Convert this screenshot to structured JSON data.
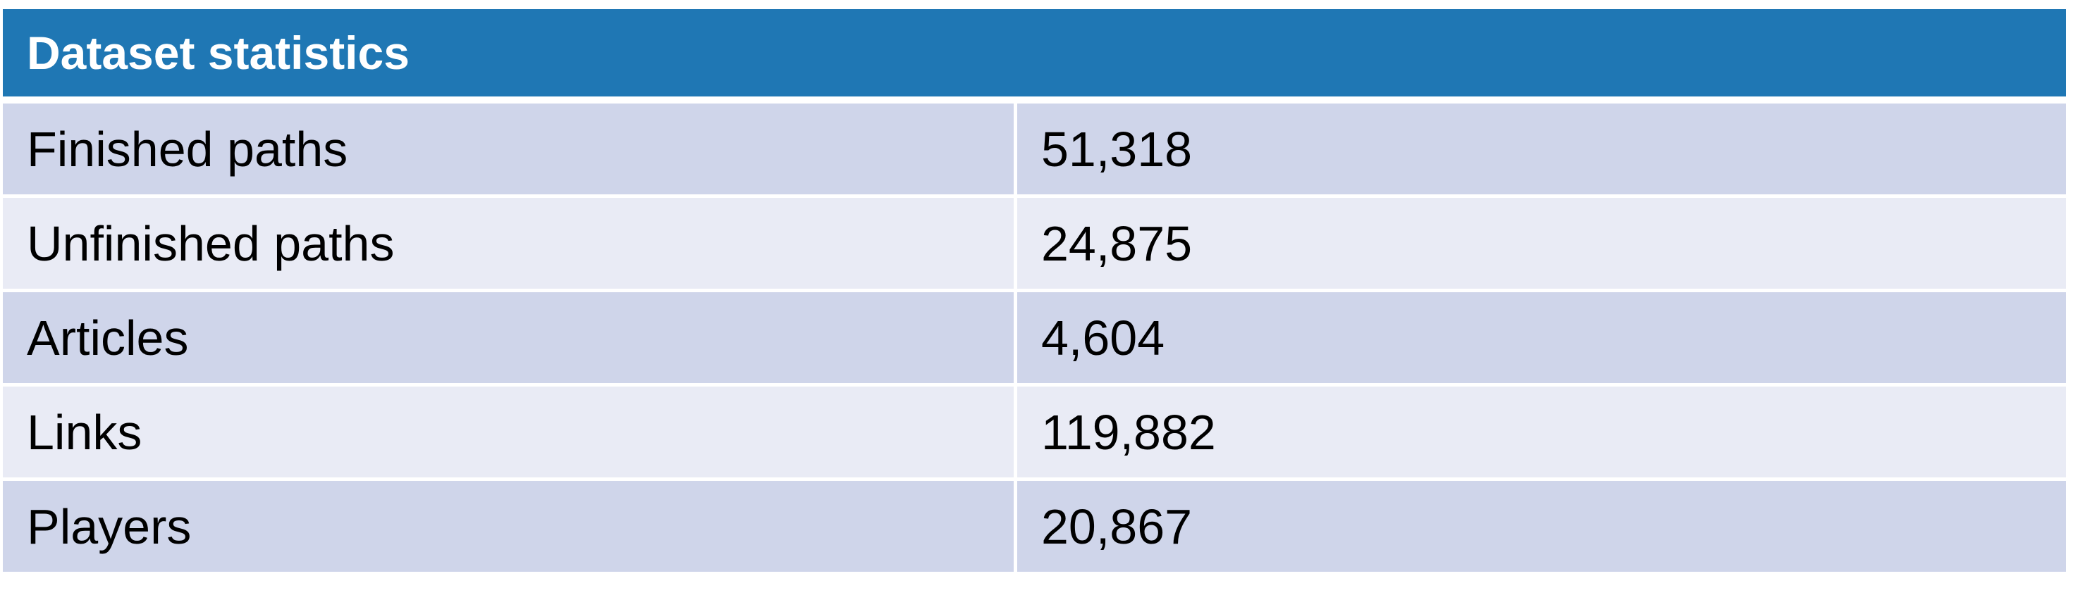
{
  "table": {
    "header": "Dataset statistics",
    "rows": [
      {
        "label": "Finished paths",
        "value": "51,318"
      },
      {
        "label": "Unfinished paths",
        "value": "24,875"
      },
      {
        "label": "Articles",
        "value": "4,604"
      },
      {
        "label": "Links",
        "value": "119,882"
      },
      {
        "label": "Players",
        "value": "20,867"
      }
    ]
  },
  "colors": {
    "header_bg": "#1f77b4",
    "row_odd_bg": "#cfd5ea",
    "row_even_bg": "#e9ebf5"
  }
}
